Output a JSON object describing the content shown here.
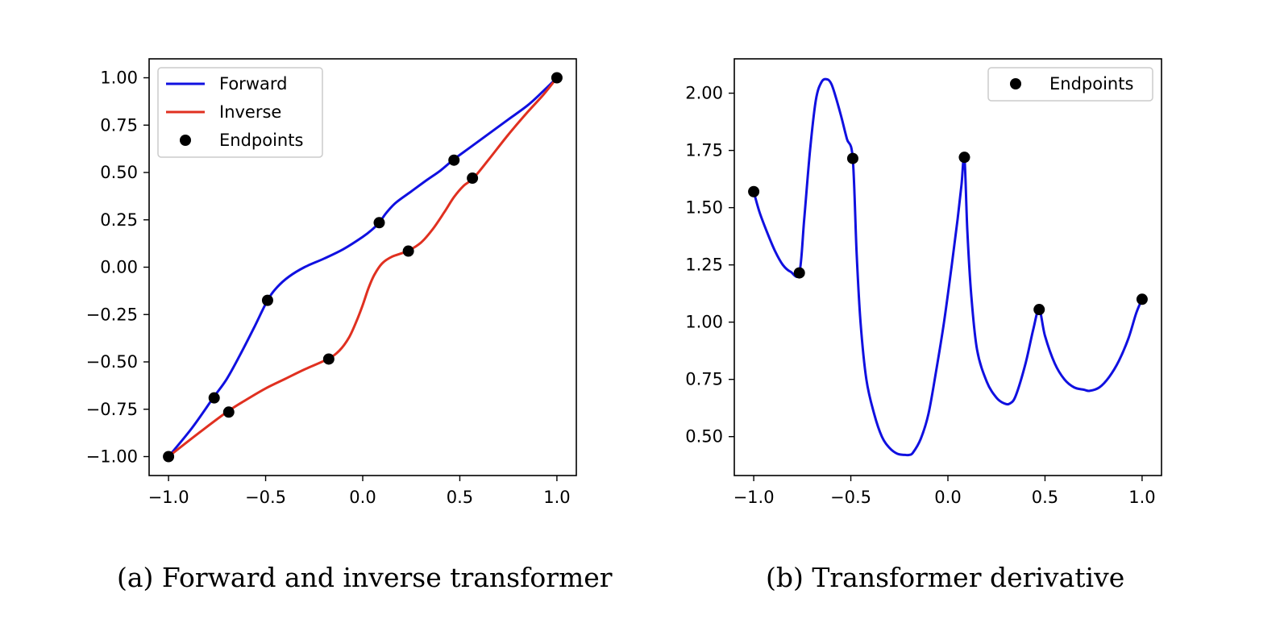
{
  "colors": {
    "forward": "#1010e0",
    "inverse": "#e03020",
    "endpoints": "#000000"
  },
  "chart_data": [
    {
      "type": "line",
      "caption": "(a) Forward and inverse transformer",
      "xlim": [
        -1.1,
        1.1
      ],
      "ylim": [
        -1.1,
        1.1
      ],
      "x_ticks": [
        {
          "v": -1.0,
          "label": "−1.0"
        },
        {
          "v": -0.5,
          "label": "−0.5"
        },
        {
          "v": 0.0,
          "label": "0.0"
        },
        {
          "v": 0.5,
          "label": "0.5"
        },
        {
          "v": 1.0,
          "label": "1.0"
        }
      ],
      "y_ticks": [
        {
          "v": 1.0,
          "label": "1.00"
        },
        {
          "v": 0.75,
          "label": "0.75"
        },
        {
          "v": 0.5,
          "label": "0.50"
        },
        {
          "v": 0.25,
          "label": "0.25"
        },
        {
          "v": 0.0,
          "label": "0.00"
        },
        {
          "v": -0.25,
          "label": "−0.25"
        },
        {
          "v": -0.5,
          "label": "−0.50"
        },
        {
          "v": -0.75,
          "label": "−0.75"
        },
        {
          "v": -1.0,
          "label": "−1.00"
        }
      ],
      "grid": false,
      "legend": {
        "position": "upper-left",
        "entries": [
          {
            "label": "Forward",
            "kind": "line",
            "color": "#1010e0"
          },
          {
            "label": "Inverse",
            "kind": "line",
            "color": "#e03020"
          },
          {
            "label": "Endpoints",
            "kind": "marker",
            "color": "#000000"
          }
        ]
      },
      "series": [
        {
          "name": "Forward",
          "color": "#1010e0",
          "x": [
            -1.0,
            -0.88,
            -0.77,
            -0.7,
            -0.63,
            -0.56,
            -0.49,
            -0.44,
            -0.38,
            -0.3,
            -0.2,
            -0.1,
            0.0,
            0.05,
            0.085,
            0.12,
            0.17,
            0.25,
            0.33,
            0.4,
            0.47,
            0.55,
            0.65,
            0.75,
            0.85,
            0.93,
            1.0
          ],
          "y": [
            -1.0,
            -0.85,
            -0.69,
            -0.59,
            -0.46,
            -0.32,
            -0.175,
            -0.105,
            -0.05,
            0.0,
            0.045,
            0.095,
            0.16,
            0.2,
            0.235,
            0.285,
            0.34,
            0.4,
            0.46,
            0.51,
            0.57,
            0.63,
            0.705,
            0.78,
            0.855,
            0.93,
            1.0
          ]
        },
        {
          "name": "Inverse",
          "color": "#e03020",
          "x": [
            -1.0,
            -0.85,
            -0.7,
            -0.6,
            -0.5,
            -0.4,
            -0.3,
            -0.18,
            -0.12,
            -0.07,
            -0.03,
            0.0,
            0.03,
            0.06,
            0.1,
            0.15,
            0.23,
            0.3,
            0.36,
            0.42,
            0.47,
            0.52,
            0.57,
            0.65,
            0.75,
            0.85,
            0.93,
            1.0
          ],
          "y": [
            -1.0,
            -0.88,
            -0.765,
            -0.7,
            -0.64,
            -0.59,
            -0.54,
            -0.485,
            -0.44,
            -0.37,
            -0.28,
            -0.2,
            -0.11,
            -0.04,
            0.02,
            0.055,
            0.085,
            0.13,
            0.2,
            0.29,
            0.37,
            0.43,
            0.47,
            0.57,
            0.7,
            0.82,
            0.91,
            1.0
          ]
        },
        {
          "name": "Endpoints",
          "kind": "scatter",
          "color": "#000000",
          "points": [
            {
              "x": -1.0,
              "y": -1.0
            },
            {
              "x": -0.765,
              "y": -0.69
            },
            {
              "x": -0.69,
              "y": -0.765
            },
            {
              "x": -0.49,
              "y": -0.175
            },
            {
              "x": -0.175,
              "y": -0.485
            },
            {
              "x": 0.085,
              "y": 0.235
            },
            {
              "x": 0.235,
              "y": 0.085
            },
            {
              "x": 0.47,
              "y": 0.565
            },
            {
              "x": 0.565,
              "y": 0.47
            },
            {
              "x": 1.0,
              "y": 1.0
            }
          ]
        }
      ]
    },
    {
      "type": "line",
      "caption": "(b) Transformer derivative",
      "xlim": [
        -1.1,
        1.1
      ],
      "ylim": [
        0.33,
        2.15
      ],
      "x_ticks": [
        {
          "v": -1.0,
          "label": "−1.0"
        },
        {
          "v": -0.5,
          "label": "−0.5"
        },
        {
          "v": 0.0,
          "label": "0.0"
        },
        {
          "v": 0.5,
          "label": "0.5"
        },
        {
          "v": 1.0,
          "label": "1.0"
        }
      ],
      "y_ticks": [
        {
          "v": 2.0,
          "label": "2.00"
        },
        {
          "v": 1.75,
          "label": "1.75"
        },
        {
          "v": 1.5,
          "label": "1.50"
        },
        {
          "v": 1.25,
          "label": "1.25"
        },
        {
          "v": 1.0,
          "label": "1.00"
        },
        {
          "v": 0.75,
          "label": "0.75"
        },
        {
          "v": 0.5,
          "label": "0.50"
        }
      ],
      "grid": false,
      "legend": {
        "position": "upper-right",
        "entries": [
          {
            "label": "Endpoints",
            "kind": "marker",
            "color": "#000000"
          }
        ]
      },
      "series": [
        {
          "name": "",
          "color": "#1010e0",
          "x": [
            -1.0,
            -0.97,
            -0.93,
            -0.89,
            -0.85,
            -0.81,
            -0.765,
            -0.74,
            -0.71,
            -0.68,
            -0.65,
            -0.62,
            -0.6,
            -0.58,
            -0.55,
            -0.52,
            -0.49,
            -0.47,
            -0.45,
            -0.42,
            -0.38,
            -0.34,
            -0.3,
            -0.26,
            -0.22,
            -0.2,
            -0.18,
            -0.14,
            -0.1,
            -0.06,
            -0.02,
            0.02,
            0.05,
            0.07,
            0.085,
            0.1,
            0.12,
            0.15,
            0.2,
            0.25,
            0.29,
            0.32,
            0.35,
            0.4,
            0.44,
            0.47,
            0.5,
            0.55,
            0.6,
            0.65,
            0.7,
            0.73,
            0.78,
            0.83,
            0.88,
            0.93,
            0.97,
            1.0
          ],
          "y": [
            1.57,
            1.48,
            1.39,
            1.31,
            1.25,
            1.22,
            1.215,
            1.45,
            1.75,
            1.97,
            2.05,
            2.06,
            2.04,
            1.99,
            1.9,
            1.8,
            1.715,
            1.3,
            1.0,
            0.75,
            0.6,
            0.5,
            0.45,
            0.425,
            0.42,
            0.42,
            0.43,
            0.49,
            0.6,
            0.79,
            1.0,
            1.25,
            1.45,
            1.6,
            1.72,
            1.4,
            1.12,
            0.88,
            0.74,
            0.67,
            0.645,
            0.645,
            0.68,
            0.82,
            0.97,
            1.055,
            0.94,
            0.82,
            0.75,
            0.715,
            0.705,
            0.7,
            0.715,
            0.76,
            0.83,
            0.93,
            1.04,
            1.1
          ]
        },
        {
          "name": "Endpoints",
          "kind": "scatter",
          "color": "#000000",
          "points": [
            {
              "x": -1.0,
              "y": 1.57
            },
            {
              "x": -0.765,
              "y": 1.215
            },
            {
              "x": -0.49,
              "y": 1.715
            },
            {
              "x": 0.085,
              "y": 1.72
            },
            {
              "x": 0.47,
              "y": 1.055
            },
            {
              "x": 1.0,
              "y": 1.1
            }
          ]
        }
      ]
    }
  ]
}
